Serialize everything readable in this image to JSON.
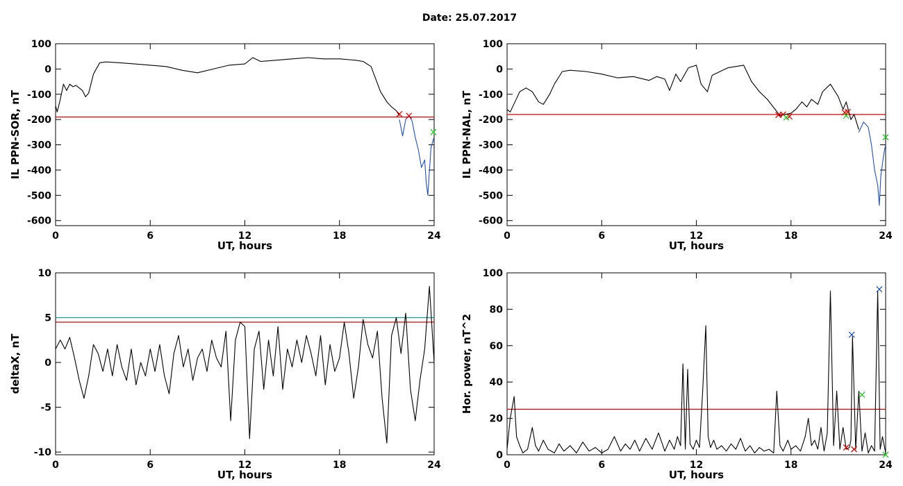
{
  "title": "Date:  25.07.2017",
  "chart_data": [
    {
      "id": "sor",
      "type": "line",
      "ylabel": "IL PPN-SOR, nT",
      "xlabel": "UT, hours",
      "xlim": [
        0,
        24
      ],
      "ylim": [
        -620,
        100
      ],
      "xticks": [
        0,
        6,
        12,
        18,
        24
      ],
      "yticks": [
        100,
        0,
        -100,
        -200,
        -300,
        -400,
        -500,
        -600
      ],
      "hlines": [
        {
          "y": -190,
          "color": "#e00000"
        }
      ],
      "series": [
        {
          "color": "#000000",
          "x": [
            0,
            0.1,
            0.3,
            0.5,
            0.7,
            0.9,
            1.1,
            1.3,
            1.5,
            1.7,
            1.9,
            2.1,
            2.4,
            2.8,
            3.2,
            4,
            5,
            6,
            7,
            8,
            9,
            10,
            11,
            12,
            12.5,
            13,
            14,
            15,
            16,
            17,
            18,
            19,
            19.5,
            20,
            20.3,
            20.6,
            21.0,
            21.3,
            21.6,
            21.8
          ],
          "y": [
            -145,
            -170,
            -120,
            -60,
            -85,
            -60,
            -70,
            -65,
            -75,
            -85,
            -110,
            -95,
            -20,
            25,
            28,
            25,
            20,
            15,
            10,
            -5,
            -15,
            0,
            15,
            20,
            45,
            30,
            35,
            40,
            45,
            40,
            40,
            35,
            30,
            10,
            -40,
            -90,
            -130,
            -150,
            -165,
            -185
          ]
        },
        {
          "color": "#1f4fbf",
          "x": [
            21.8,
            22.0,
            22.2,
            22.4,
            22.6,
            22.8,
            23.0,
            23.2,
            23.4,
            23.5,
            23.6,
            23.8,
            24
          ],
          "y": [
            -200,
            -265,
            -200,
            -185,
            -205,
            -270,
            -320,
            -390,
            -360,
            -450,
            -500,
            -310,
            -270
          ]
        }
      ],
      "markers": [
        {
          "x": 21.8,
          "y": -178,
          "color": "#e00000"
        },
        {
          "x": 22.4,
          "y": -185,
          "color": "#e00000"
        },
        {
          "x": 23.95,
          "y": -250,
          "color": "#22cc22"
        }
      ]
    },
    {
      "id": "nal",
      "type": "line",
      "ylabel": "IL PPN-NAL, nT",
      "xlabel": "UT, hours",
      "xlim": [
        0,
        24
      ],
      "ylim": [
        -620,
        100
      ],
      "xticks": [
        0,
        6,
        12,
        18,
        24
      ],
      "yticks": [
        100,
        0,
        -100,
        -200,
        -300,
        -400,
        -500,
        -600
      ],
      "hlines": [
        {
          "y": -180,
          "color": "#e00000"
        }
      ],
      "series": [
        {
          "color": "#000000",
          "x": [
            0,
            0.2,
            0.5,
            0.8,
            1.2,
            1.6,
            2.0,
            2.3,
            2.7,
            3.0,
            3.5,
            4,
            5,
            6,
            7,
            8,
            9,
            9.5,
            10,
            10.3,
            10.7,
            11,
            11.5,
            12,
            12.3,
            12.7,
            13,
            13.5,
            14,
            14.5,
            15,
            15.5,
            16,
            16.5,
            17,
            17.3,
            17.6,
            18,
            18.3,
            18.7,
            19,
            19.3,
            19.7,
            20,
            20.5,
            21,
            21.3,
            21.5,
            21.8,
            22.0,
            22.3
          ],
          "y": [
            -160,
            -170,
            -130,
            -90,
            -75,
            -90,
            -130,
            -140,
            -100,
            -60,
            -10,
            -5,
            -10,
            -20,
            -35,
            -30,
            -45,
            -30,
            -40,
            -85,
            -20,
            -50,
            5,
            15,
            -60,
            -90,
            -25,
            -10,
            5,
            10,
            15,
            -50,
            -90,
            -120,
            -160,
            -185,
            -180,
            -175,
            -160,
            -130,
            -150,
            -120,
            -140,
            -90,
            -60,
            -110,
            -160,
            -130,
            -200,
            -180,
            -240
          ]
        },
        {
          "color": "#1f4fbf",
          "x": [
            22.3,
            22.6,
            22.9,
            23.1,
            23.3,
            23.5,
            23.6,
            23.7,
            23.9,
            24
          ],
          "y": [
            -250,
            -210,
            -230,
            -300,
            -400,
            -460,
            -540,
            -420,
            -330,
            -300
          ]
        }
      ],
      "markers": [
        {
          "x": 17.2,
          "y": -182,
          "color": "#e00000"
        },
        {
          "x": 17.5,
          "y": -180,
          "color": "#e00000"
        },
        {
          "x": 17.9,
          "y": -188,
          "color": "#e00000"
        },
        {
          "x": 17.7,
          "y": -192,
          "color": "#22cc22"
        },
        {
          "x": 21.4,
          "y": -172,
          "color": "#e00000"
        },
        {
          "x": 21.6,
          "y": -170,
          "color": "#e00000"
        },
        {
          "x": 21.5,
          "y": -185,
          "color": "#22cc22"
        },
        {
          "x": 24.0,
          "y": -270,
          "color": "#22cc22"
        }
      ]
    },
    {
      "id": "deltax",
      "type": "line",
      "ylabel": "deltaX, nT",
      "xlabel": "UT, hours",
      "xlim": [
        0,
        24
      ],
      "ylim": [
        -10.3,
        10
      ],
      "xticks": [
        0,
        6,
        12,
        18,
        24
      ],
      "yticks": [
        10,
        5,
        0,
        -5,
        -10
      ],
      "hlines": [
        {
          "y": 5.0,
          "color": "#1a9a9a"
        },
        {
          "y": 4.5,
          "color": "#e00000"
        }
      ],
      "series": [
        {
          "color": "#000000",
          "x": [
            0,
            0.3,
            0.6,
            0.9,
            1.2,
            1.5,
            1.8,
            2.1,
            2.4,
            2.7,
            3.0,
            3.3,
            3.6,
            3.9,
            4.2,
            4.5,
            4.8,
            5.1,
            5.4,
            5.7,
            6.0,
            6.3,
            6.6,
            6.9,
            7.2,
            7.5,
            7.8,
            8.1,
            8.4,
            8.7,
            9.0,
            9.3,
            9.6,
            9.9,
            10.2,
            10.5,
            10.8,
            11.1,
            11.4,
            11.7,
            12.0,
            12.3,
            12.6,
            12.9,
            13.2,
            13.5,
            13.8,
            14.1,
            14.4,
            14.7,
            15.0,
            15.3,
            15.6,
            15.9,
            16.2,
            16.5,
            16.8,
            17.1,
            17.4,
            17.7,
            18.0,
            18.3,
            18.6,
            18.9,
            19.2,
            19.5,
            19.8,
            20.1,
            20.4,
            20.7,
            21.0,
            21.3,
            21.6,
            21.9,
            22.2,
            22.5,
            22.8,
            23.1,
            23.4,
            23.7,
            24.0
          ],
          "y": [
            1.5,
            2.5,
            1.5,
            2.8,
            0.5,
            -2,
            -4,
            -1.5,
            2,
            1,
            -1,
            1.5,
            -1.5,
            2,
            -0.5,
            -2,
            1.5,
            -2.5,
            0,
            -1.5,
            1.5,
            -1,
            2,
            -1.5,
            -3.5,
            1,
            3,
            -0.5,
            1.5,
            -2,
            0.5,
            1.5,
            -1,
            2.5,
            0.5,
            -0.5,
            3.5,
            -6.5,
            2.5,
            4.5,
            4.0,
            -8.5,
            1.5,
            3.5,
            -3,
            2.5,
            -1.5,
            4,
            -3,
            1.5,
            -0.5,
            2.5,
            0,
            3,
            1,
            -1.5,
            3,
            -2.5,
            2,
            -1,
            0.5,
            4.5,
            1,
            -4,
            -0.5,
            4.8,
            2,
            0.5,
            3.5,
            -4,
            -9,
            3,
            5,
            1,
            5.5,
            -3,
            -6.5,
            -2,
            1.5,
            8.5,
            0
          ]
        }
      ],
      "markers": []
    },
    {
      "id": "power",
      "type": "line",
      "ylabel": "Hor. power, nT^2",
      "xlabel": "UT, hours",
      "xlim": [
        0,
        24
      ],
      "ylim": [
        0,
        100
      ],
      "xticks": [
        0,
        6,
        12,
        18,
        24
      ],
      "yticks": [
        100,
        80,
        60,
        40,
        20,
        0
      ],
      "hlines": [
        {
          "y": 25,
          "color": "#e00000"
        }
      ],
      "series": [
        {
          "color": "#000000",
          "x": [
            0,
            0.2,
            0.45,
            0.6,
            0.8,
            1.0,
            1.3,
            1.6,
            1.8,
            2.0,
            2.3,
            2.6,
            3.0,
            3.3,
            3.6,
            4.0,
            4.4,
            4.8,
            5.2,
            5.6,
            6.0,
            6.4,
            6.8,
            7.2,
            7.5,
            7.8,
            8.1,
            8.4,
            8.8,
            9.2,
            9.6,
            10.0,
            10.3,
            10.6,
            10.8,
            11.0,
            11.15,
            11.3,
            11.45,
            11.6,
            11.8,
            12.0,
            12.2,
            12.4,
            12.6,
            12.75,
            12.9,
            13.1,
            13.3,
            13.6,
            13.9,
            14.2,
            14.5,
            14.8,
            15.1,
            15.4,
            15.7,
            16.0,
            16.3,
            16.6,
            16.9,
            17.1,
            17.3,
            17.5,
            17.8,
            18.0,
            18.3,
            18.6,
            18.9,
            19.1,
            19.3,
            19.5,
            19.7,
            19.9,
            20.1,
            20.3,
            20.5,
            20.7,
            20.9,
            21.1,
            21.3,
            21.5,
            21.7,
            21.8,
            21.9,
            22.1,
            22.3,
            22.5,
            22.7,
            22.9,
            23.1,
            23.3,
            23.5,
            23.65,
            23.8,
            24.0
          ],
          "y": [
            3,
            20,
            32,
            10,
            5,
            1,
            3,
            15,
            5,
            2,
            8,
            3,
            1,
            6,
            2,
            5,
            1,
            7,
            2,
            4,
            1,
            3,
            10,
            2,
            6,
            3,
            8,
            2,
            9,
            3,
            12,
            2,
            8,
            3,
            10,
            5,
            50,
            3,
            47,
            6,
            3,
            8,
            4,
            35,
            71,
            10,
            4,
            8,
            3,
            5,
            2,
            6,
            3,
            9,
            2,
            5,
            1,
            4,
            2,
            3,
            1,
            35,
            5,
            2,
            8,
            3,
            5,
            2,
            10,
            20,
            5,
            8,
            3,
            15,
            2,
            12,
            90,
            5,
            35,
            3,
            15,
            3,
            4,
            8,
            65,
            3,
            35,
            2,
            12,
            1,
            5,
            2,
            90,
            3,
            10,
            1
          ]
        }
      ],
      "markers": [
        {
          "x": 21.85,
          "y": 66,
          "color": "#1f4fbf"
        },
        {
          "x": 23.6,
          "y": 91,
          "color": "#1f4fbf"
        },
        {
          "x": 22.5,
          "y": 33,
          "color": "#22cc22"
        },
        {
          "x": 21.5,
          "y": 4,
          "color": "#e00000"
        },
        {
          "x": 22.0,
          "y": 3,
          "color": "#e00000"
        },
        {
          "x": 24.0,
          "y": 0,
          "color": "#22cc22"
        }
      ]
    }
  ]
}
